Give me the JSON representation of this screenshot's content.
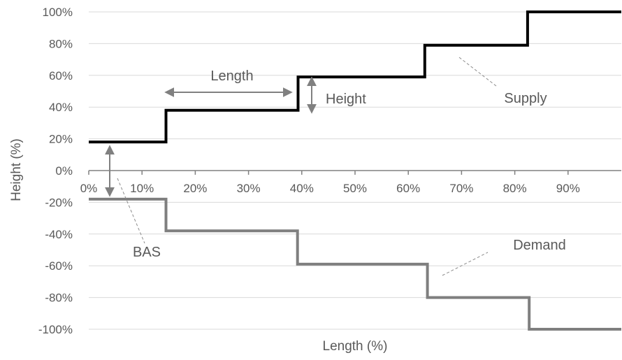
{
  "chart_data": {
    "type": "line",
    "title": "",
    "xlabel": "Length (%)",
    "ylabel": "Height (%)",
    "xlim": [
      0,
      100
    ],
    "ylim": [
      -100,
      100
    ],
    "x_tick_labels": [
      "0%",
      "10%",
      "20%",
      "30%",
      "40%",
      "50%",
      "60%",
      "70%",
      "80%",
      "90%"
    ],
    "x_tick_values": [
      0,
      10,
      20,
      30,
      40,
      50,
      60,
      70,
      80,
      90
    ],
    "y_tick_labels": [
      "100%",
      "80%",
      "60%",
      "40%",
      "20%",
      "0%",
      "-20%",
      "-40%",
      "-60%",
      "-80%",
      "-100%"
    ],
    "y_tick_values": [
      100,
      80,
      60,
      40,
      20,
      0,
      -20,
      -40,
      -60,
      -80,
      -100
    ],
    "grid": "horizontal",
    "series": [
      {
        "name": "Supply",
        "color": "#000000",
        "step_points": [
          [
            0,
            18
          ],
          [
            14.5,
            18
          ],
          [
            14.5,
            38
          ],
          [
            39.3,
            38
          ],
          [
            39.3,
            59
          ],
          [
            63.1,
            59
          ],
          [
            63.1,
            79
          ],
          [
            82.4,
            79
          ],
          [
            82.4,
            100
          ],
          [
            100,
            100
          ]
        ]
      },
      {
        "name": "Demand",
        "color": "#7f7f7f",
        "step_points": [
          [
            0,
            -18
          ],
          [
            14.5,
            -18
          ],
          [
            14.5,
            -38
          ],
          [
            39.2,
            -38
          ],
          [
            39.2,
            -59
          ],
          [
            63.6,
            -59
          ],
          [
            63.6,
            -80
          ],
          [
            82.7,
            -80
          ],
          [
            82.7,
            -100
          ],
          [
            100,
            -100
          ]
        ]
      }
    ],
    "annotations": {
      "length": "Length",
      "height": "Height",
      "bas": "BAS"
    },
    "colors": {
      "grid": "#d9d9d9",
      "axis": "#808080",
      "text": "#595959",
      "arrow": "#808080"
    }
  }
}
